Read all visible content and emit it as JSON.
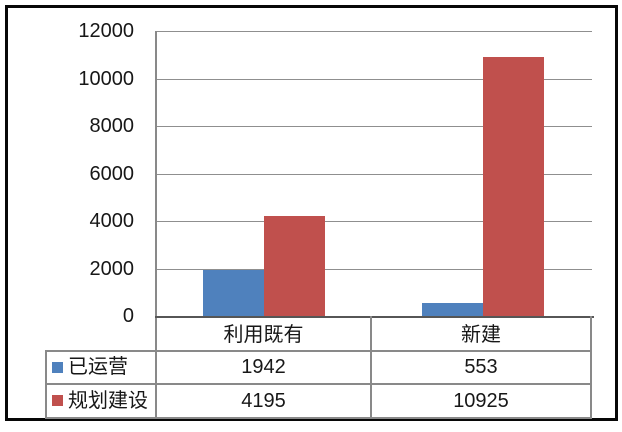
{
  "chart_data": {
    "type": "bar",
    "title": "",
    "xlabel": "",
    "ylabel": "",
    "categories": [
      "利用既有",
      "新建"
    ],
    "series": [
      {
        "name": "已运营",
        "color": "#4F81BD",
        "values": [
          1942,
          553
        ]
      },
      {
        "name": "规划建设",
        "color": "#C0504D",
        "values": [
          4195,
          10925
        ]
      }
    ],
    "ylim": [
      0,
      12000
    ],
    "tick_step": 2000,
    "y_tick_labels": [
      "12000",
      "10000",
      "8000",
      "6000",
      "4000",
      "2000",
      "0"
    ],
    "grid": true,
    "legend_position": "data-table-left-column",
    "has_data_table": true,
    "frame_color": "#070707",
    "text_color": "#171717"
  }
}
